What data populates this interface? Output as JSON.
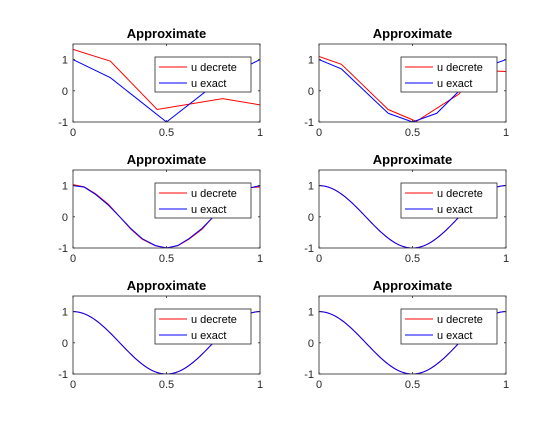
{
  "figure": {
    "background": "#ffffff",
    "axis_color": "#262626",
    "legend_border_color": "#262626"
  },
  "chart_data": [
    {
      "type": "line",
      "title": "Approximate",
      "xlim": [
        0,
        1
      ],
      "ylim": [
        -1,
        1.5
      ],
      "xticks": [
        0,
        0.5,
        1
      ],
      "xticklabels": [
        "0",
        "0.5",
        "1"
      ],
      "yticks": [
        -1,
        0,
        1
      ],
      "yticklabels": [
        "-1",
        "0",
        "1"
      ],
      "grid": false,
      "legend_position": "top-right",
      "series": [
        {
          "name": "u decrete",
          "color": "#ff0000",
          "points": [
            [
              0,
              1.33
            ],
            [
              0.2,
              0.95
            ],
            [
              0.45,
              -0.6
            ],
            [
              0.8,
              -0.25
            ],
            [
              1,
              -0.45
            ]
          ]
        },
        {
          "name": "u exact",
          "color": "#0000ff",
          "points": [
            [
              0,
              1.0
            ],
            [
              0.2,
              0.42
            ],
            [
              0.5,
              -1.0
            ],
            [
              0.8,
              0.4
            ],
            [
              1,
              1.0
            ]
          ]
        }
      ]
    },
    {
      "type": "line",
      "title": "Approximate",
      "xlim": [
        0,
        1
      ],
      "ylim": [
        -1,
        1.5
      ],
      "xticks": [
        0,
        0.5,
        1
      ],
      "xticklabels": [
        "0",
        "0.5",
        "1"
      ],
      "yticks": [
        -1,
        0,
        1
      ],
      "yticklabels": [
        "-1",
        "0",
        "1"
      ],
      "grid": false,
      "legend_position": "top-right",
      "series": [
        {
          "name": "u decrete",
          "color": "#ff0000",
          "points": [
            [
              0,
              1.1
            ],
            [
              0.12,
              0.85
            ],
            [
              0.37,
              -0.6
            ],
            [
              0.52,
              -0.98
            ],
            [
              0.75,
              -0.1
            ],
            [
              0.83,
              0.66
            ],
            [
              1,
              0.62
            ]
          ]
        },
        {
          "name": "u exact",
          "color": "#0000ff",
          "points": [
            [
              0,
              1.0
            ],
            [
              0.12,
              0.7
            ],
            [
              0.37,
              -0.72
            ],
            [
              0.5,
              -1.0
            ],
            [
              0.63,
              -0.72
            ],
            [
              0.87,
              0.72
            ],
            [
              1,
              1.0
            ]
          ]
        }
      ]
    },
    {
      "type": "line",
      "title": "Approximate",
      "xlim": [
        0,
        1
      ],
      "ylim": [
        -1,
        1.5
      ],
      "xticks": [
        0,
        0.5,
        1
      ],
      "xticklabels": [
        "0",
        "0.5",
        "1"
      ],
      "yticks": [
        -1,
        0,
        1
      ],
      "yticklabels": [
        "-1",
        "0",
        "1"
      ],
      "grid": false,
      "legend_position": "top-right",
      "series": [
        {
          "name": "u decrete",
          "color": "#ff0000",
          "points": [
            [
              0,
              1.03
            ],
            [
              0.06,
              0.96
            ],
            [
              0.12,
              0.74
            ],
            [
              0.19,
              0.4
            ],
            [
              0.25,
              0.0
            ],
            [
              0.31,
              -0.4
            ],
            [
              0.37,
              -0.72
            ],
            [
              0.44,
              -0.93
            ],
            [
              0.5,
              -1.0
            ],
            [
              0.56,
              -0.93
            ],
            [
              0.62,
              -0.72
            ],
            [
              0.69,
              -0.4
            ],
            [
              0.75,
              0.0
            ],
            [
              0.81,
              0.4
            ],
            [
              0.88,
              0.72
            ],
            [
              0.94,
              0.93
            ],
            [
              1,
              0.96
            ]
          ]
        },
        {
          "name": "u exact",
          "color": "#0000ff",
          "points": [
            [
              0,
              1.0
            ],
            [
              0.06,
              0.95
            ],
            [
              0.12,
              0.72
            ],
            [
              0.19,
              0.37
            ],
            [
              0.25,
              0.0
            ],
            [
              0.31,
              -0.38
            ],
            [
              0.37,
              -0.7
            ],
            [
              0.44,
              -0.92
            ],
            [
              0.5,
              -1.0
            ],
            [
              0.56,
              -0.92
            ],
            [
              0.62,
              -0.7
            ],
            [
              0.69,
              -0.37
            ],
            [
              0.75,
              0.0
            ],
            [
              0.81,
              0.38
            ],
            [
              0.88,
              0.72
            ],
            [
              0.94,
              0.92
            ],
            [
              1,
              1.0
            ]
          ]
        }
      ]
    },
    {
      "type": "line",
      "title": "Approximate",
      "xlim": [
        0,
        1
      ],
      "ylim": [
        -1,
        1.5
      ],
      "xticks": [
        0,
        0.5,
        1
      ],
      "xticklabels": [
        "0",
        "0.5",
        "1"
      ],
      "yticks": [
        -1,
        0,
        1
      ],
      "yticklabels": [
        "-1",
        "0",
        "1"
      ],
      "grid": false,
      "legend_position": "top-right",
      "series": [
        {
          "name": "u decrete",
          "color": "#ff0000",
          "curve": "cos(2*pi*x)",
          "x_range": [
            0,
            1
          ]
        },
        {
          "name": "u exact",
          "color": "#0000ff",
          "curve": "cos(2*pi*x)",
          "x_range": [
            0,
            1
          ]
        }
      ]
    },
    {
      "type": "line",
      "title": "Approximate",
      "xlim": [
        0,
        1
      ],
      "ylim": [
        -1,
        1.5
      ],
      "xticks": [
        0,
        0.5,
        1
      ],
      "xticklabels": [
        "0",
        "0.5",
        "1"
      ],
      "yticks": [
        -1,
        0,
        1
      ],
      "yticklabels": [
        "-1",
        "0",
        "1"
      ],
      "grid": false,
      "legend_position": "top-right",
      "series": [
        {
          "name": "u decrete",
          "color": "#ff0000",
          "curve": "cos(2*pi*x)",
          "x_range": [
            0,
            1
          ]
        },
        {
          "name": "u exact",
          "color": "#0000ff",
          "curve": "cos(2*pi*x)",
          "x_range": [
            0,
            1
          ]
        }
      ]
    },
    {
      "type": "line",
      "title": "Approximate",
      "xlim": [
        0,
        1
      ],
      "ylim": [
        -1,
        1.5
      ],
      "xticks": [
        0,
        0.5,
        1
      ],
      "xticklabels": [
        "0",
        "0.5",
        "1"
      ],
      "yticks": [
        -1,
        0,
        1
      ],
      "yticklabels": [
        "-1",
        "0",
        "1"
      ],
      "grid": false,
      "legend_position": "top-right",
      "series": [
        {
          "name": "u decrete",
          "color": "#ff0000",
          "curve": "cos(2*pi*x)",
          "x_range": [
            0,
            1
          ]
        },
        {
          "name": "u exact",
          "color": "#0000ff",
          "curve": "cos(2*pi*x)",
          "x_range": [
            0,
            1
          ]
        }
      ]
    }
  ]
}
